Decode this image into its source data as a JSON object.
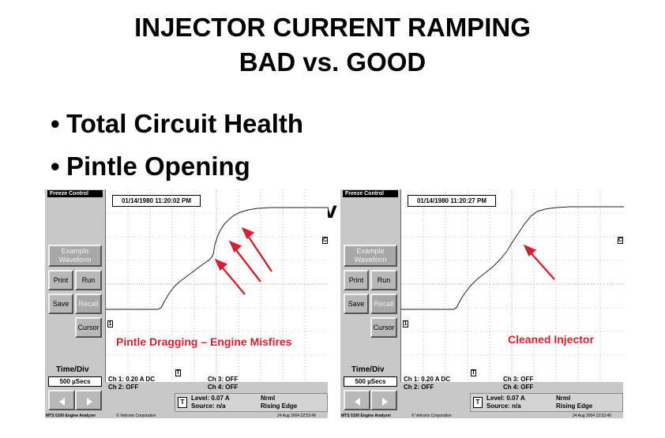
{
  "slide": {
    "title_line1": "INJECTOR CURRENT RAMPING",
    "title_line2": "BAD vs. GOOD",
    "bullets": [
      "Total Circuit Health",
      "Pintle Opening"
    ],
    "partial_text": "v",
    "bullet_glyph": "•"
  },
  "scopes": [
    {
      "freeze_label": "Freeze Control",
      "timestamp": "01/14/1980 11:20:02 PM",
      "buttons": {
        "example_line1": "Example",
        "example_line2": "Waveform",
        "print": "Print",
        "run": "Run",
        "save": "Save",
        "recall": "Recall",
        "cursor": "Cursor"
      },
      "annotation": "Pintle Dragging – Engine Misfires",
      "time_div_label": "Time/Div",
      "time_div_value": "500 µSecs",
      "ch1": "Ch 1: 0.20 A DC",
      "ch2": "Ch 2: OFF",
      "ch3": "Ch 3: OFF",
      "ch4": "Ch 4: OFF",
      "trigger_icon": "T",
      "level": "Level: 0.07 A",
      "source": "Source: n/a",
      "mode": "Nrml",
      "edge": "Rising Edge",
      "analyzer": "MTS 5100 Engine Analyzer",
      "corp": "© Vetronix Corporation",
      "date": "24 Aug 2004 22:53:49",
      "marker_c": "C",
      "marker_1": "1",
      "marker_t": "T",
      "accent_color": "#d42030"
    },
    {
      "freeze_label": "Freeze Control",
      "timestamp": "01/14/1980 11:20:27 PM",
      "buttons": {
        "example_line1": "Example",
        "example_line2": "Waveform",
        "print": "Print",
        "run": "Run",
        "save": "Save",
        "recall": "Recall",
        "cursor": "Cursor"
      },
      "annotation": "Cleaned Injector",
      "time_div_label": "Time/Div",
      "time_div_value": "500 µSecs",
      "ch1": "Ch 1: 0.20 A DC",
      "ch2": "Ch 2: OFF",
      "ch3": "Ch 3: OFF",
      "ch4": "Ch 4: OFF",
      "trigger_icon": "T",
      "level": "Level: 0.07 A",
      "source": "Source: n/a",
      "mode": "Nrml",
      "edge": "Rising Edge",
      "analyzer": "MTS 5100 Engine Analyzer",
      "corp": "© Vetronix Corporation",
      "date": "24 Aug 2004 22:53:49",
      "marker_c": "C",
      "marker_1": "1",
      "marker_t": "T",
      "accent_color": "#d42030"
    }
  ]
}
